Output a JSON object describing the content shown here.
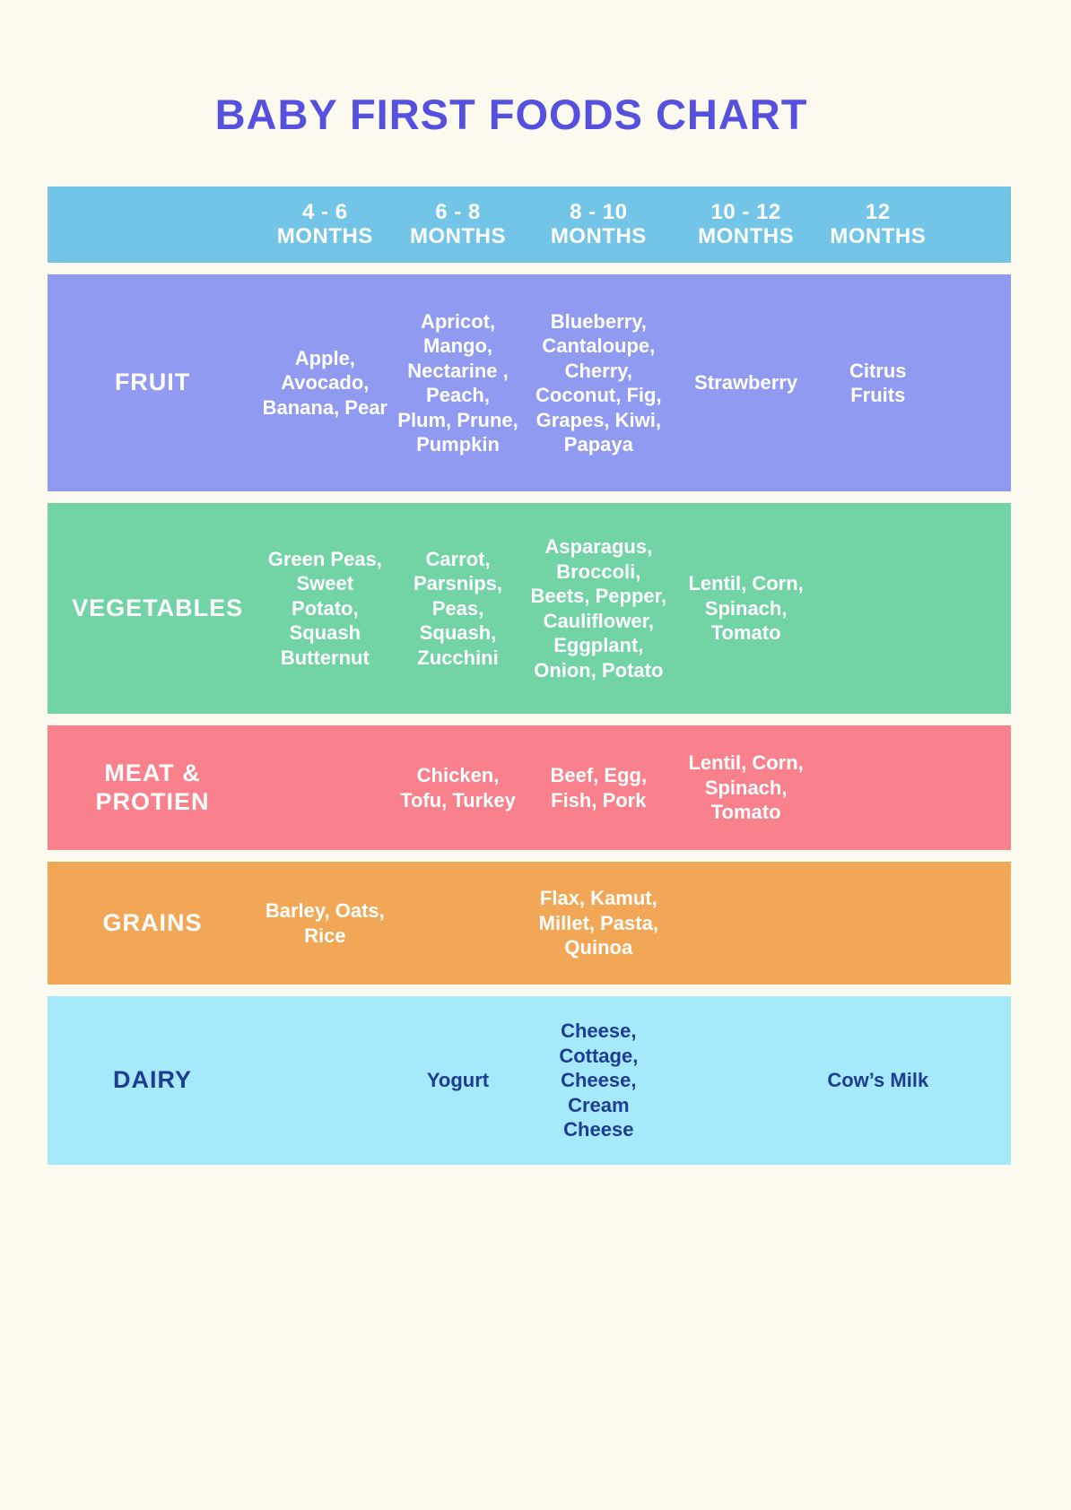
{
  "title": "BABY FIRST FOODS CHART",
  "colors": {
    "background": "#FCFAEE",
    "title": "#5650DF",
    "header_band": "#73C5E8",
    "fruit_band": "#8F9AF0",
    "vegetables_band": "#72D3A4",
    "meat_band": "#F9818B",
    "grains_band": "#F1A755",
    "dairy_band": "#A6E9FB",
    "dairy_text": "#1C3D91",
    "cell_text": "#FFFFFF"
  },
  "chart_data": {
    "type": "table",
    "title": "BABY FIRST FOODS CHART",
    "columns": [
      {
        "range": "4 - 6",
        "unit": "MONTHS"
      },
      {
        "range": "6 - 8",
        "unit": "MONTHS"
      },
      {
        "range": "8 - 10",
        "unit": "MONTHS"
      },
      {
        "range": "10 - 12",
        "unit": "MONTHS"
      },
      {
        "range": "12",
        "unit": "MONTHS"
      }
    ],
    "rows": [
      {
        "label": "FRUIT",
        "cells": [
          "Apple, Avocado, Banana, Pear",
          "Apricot, Mango, Nectarine , Peach, Plum, Prune, Pumpkin",
          "Blueberry, Cantaloupe, Cherry, Coconut, Fig, Grapes, Kiwi, Papaya",
          "Strawberry",
          "Citrus Fruits"
        ]
      },
      {
        "label": "VEGETABLES",
        "cells": [
          "Green Peas, Sweet Potato, Squash Butternut",
          "Carrot, Parsnips, Peas, Squash, Zucchini",
          "Asparagus, Broccoli, Beets, Pepper, Cauliflower, Eggplant, Onion, Potato",
          "Lentil, Corn, Spinach, Tomato",
          ""
        ]
      },
      {
        "label": "MEAT & PROTIEN",
        "cells": [
          "",
          "Chicken, Tofu, Turkey",
          "Beef, Egg, Fish, Pork",
          "Lentil, Corn, Spinach, Tomato",
          ""
        ]
      },
      {
        "label": "GRAINS",
        "cells": [
          "Barley, Oats, Rice",
          "",
          "Flax, Kamut, Millet, Pasta, Quinoa",
          "",
          ""
        ]
      },
      {
        "label": "DAIRY",
        "cells": [
          "",
          "Yogurt",
          "Cheese, Cottage, Cheese, Cream Cheese",
          "",
          "Cow’s Milk"
        ]
      }
    ]
  }
}
